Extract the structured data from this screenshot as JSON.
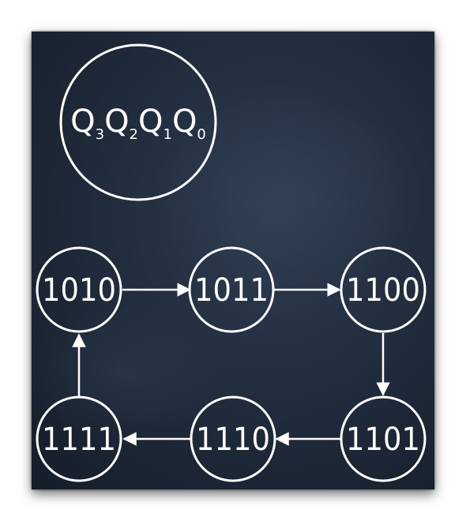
{
  "legend": {
    "letter": "Q",
    "subscripts": [
      "3",
      "2",
      "1",
      "0"
    ]
  },
  "states": [
    {
      "id": "s1010",
      "label": "1010"
    },
    {
      "id": "s1011",
      "label": "1011"
    },
    {
      "id": "s1100",
      "label": "1100"
    },
    {
      "id": "s1101",
      "label": "1101"
    },
    {
      "id": "s1110",
      "label": "1110"
    },
    {
      "id": "s1111",
      "label": "1111"
    }
  ],
  "transitions": [
    {
      "from": "1010",
      "to": "1011"
    },
    {
      "from": "1011",
      "to": "1100"
    },
    {
      "from": "1100",
      "to": "1101"
    },
    {
      "from": "1101",
      "to": "1110"
    },
    {
      "from": "1110",
      "to": "1111"
    },
    {
      "from": "1111",
      "to": "1010"
    }
  ],
  "colors": {
    "board": "#1f2a3a",
    "ink": "#ffffff"
  }
}
